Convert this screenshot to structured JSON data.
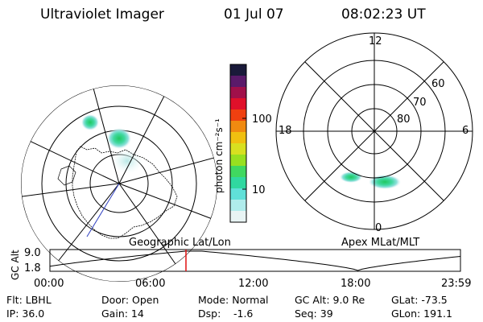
{
  "header": {
    "instrument": "Ultraviolet Imager",
    "date": "01 Jul 07",
    "time": "08:02:23 UT"
  },
  "colorbar": {
    "label": "photon cm⁻²s⁻¹",
    "ticks": [
      "100",
      "10"
    ],
    "colors": [
      "#1a1a3a",
      "#5a1a6a",
      "#a0104a",
      "#e0102a",
      "#f04010",
      "#f08a10",
      "#f0c010",
      "#d8e020",
      "#98e020",
      "#40d860",
      "#30d8a0",
      "#60e0d8",
      "#b0ecec",
      "#e8f4f4"
    ]
  },
  "left_map": {
    "caption": "Geographic Lat/Lon"
  },
  "right_map": {
    "caption": "Apex MLat/MLT",
    "mlt_labels": [
      "12",
      "18",
      "6",
      "0"
    ],
    "lat_labels": [
      "60",
      "70",
      "80"
    ]
  },
  "timeline": {
    "axis_label": "GC Alt",
    "y_ticks": [
      "9.0",
      "1.8"
    ],
    "x_ticks": [
      "00:00",
      "06:00",
      "12:00",
      "18:00",
      "23:59"
    ],
    "current_marker": "08:02"
  },
  "info": {
    "flt": "Flt: LBHL",
    "ip": "IP: 36.0",
    "door": "Door: Open",
    "gain": "Gain: 14",
    "mode": "Mode: Normal",
    "dsp_label": "Dsp:",
    "dsp_value": "-1.6",
    "gc_alt": "GC Alt: 9.0 Re",
    "seq": "Seq: 39",
    "glat": "GLat: -73.5",
    "glon": "GLon: 191.1"
  }
}
